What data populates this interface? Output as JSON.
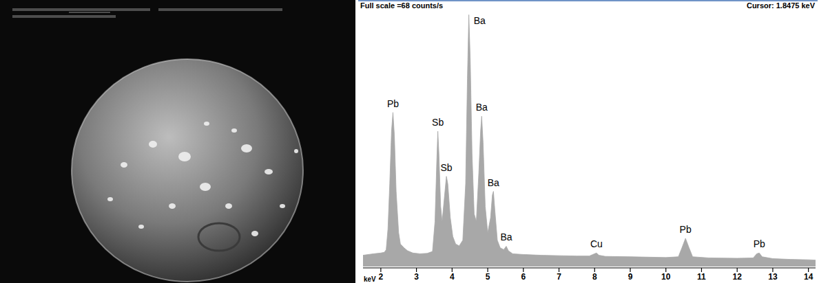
{
  "chart_data": {
    "type": "area",
    "title": "Full scale =68 counts/s",
    "subtitle": "Cursor: 1.8475 keV",
    "x_label": "keV",
    "color": "#a8a8a8",
    "grid": false,
    "tick_labels": "x",
    "xlim": [
      1.5,
      14.2
    ],
    "ylim": [
      0,
      68
    ],
    "xticks": [
      2,
      3,
      4,
      5,
      6,
      7,
      8,
      9,
      10,
      11,
      12,
      13,
      14
    ],
    "x": [
      1.5,
      1.8,
      2.0,
      2.1,
      2.15,
      2.2,
      2.25,
      2.3,
      2.34,
      2.38,
      2.43,
      2.5,
      2.55,
      2.65,
      2.75,
      2.9,
      3.1,
      3.3,
      3.45,
      3.52,
      3.57,
      3.6,
      3.63,
      3.68,
      3.72,
      3.78,
      3.84,
      3.88,
      3.95,
      4.02,
      4.1,
      4.2,
      4.3,
      4.38,
      4.43,
      4.47,
      4.51,
      4.56,
      4.62,
      4.68,
      4.75,
      4.8,
      4.83,
      4.87,
      4.93,
      5.0,
      5.08,
      5.13,
      5.16,
      5.2,
      5.27,
      5.35,
      5.45,
      5.52,
      5.58,
      5.7,
      6.0,
      6.5,
      7.0,
      7.5,
      7.85,
      7.95,
      8.05,
      8.12,
      8.3,
      9.0,
      9.5,
      10.0,
      10.35,
      10.45,
      10.55,
      10.65,
      10.75,
      11.2,
      12.0,
      12.45,
      12.55,
      12.62,
      12.7,
      13.0,
      13.5,
      14.0,
      14.2
    ],
    "values": [
      3.0,
      3.4,
      3.6,
      3.8,
      4.5,
      10,
      22,
      36,
      41,
      35,
      20,
      9,
      6,
      5,
      4.2,
      3.6,
      3.4,
      3.5,
      4,
      12,
      28,
      36,
      30,
      16,
      12,
      18,
      24,
      22,
      13,
      8,
      6,
      5.5,
      7,
      22,
      50,
      67,
      55,
      30,
      14,
      12,
      25,
      36,
      40,
      33,
      16,
      9,
      13,
      19,
      20,
      15,
      7,
      5,
      4.5,
      5.4,
      4.2,
      3.4,
      3.2,
      3.0,
      2.9,
      2.8,
      2.8,
      3.2,
      3.6,
      3.0,
      2.7,
      2.6,
      2.5,
      2.4,
      2.6,
      5,
      7.5,
      5,
      2.6,
      2.3,
      2.2,
      2.3,
      3.4,
      3.6,
      2.6,
      2.1,
      1.9,
      1.8,
      1.7
    ],
    "annotations": [
      {
        "text": "Pb",
        "x": 2.34,
        "y": 41
      },
      {
        "text": "Sb",
        "x": 3.6,
        "y": 36
      },
      {
        "text": "Sb",
        "x": 3.84,
        "y": 24
      },
      {
        "text": "Ba",
        "x": 4.47,
        "y": 67
      },
      {
        "text": "Ba",
        "x": 4.83,
        "y": 40
      },
      {
        "text": "Ba",
        "x": 5.16,
        "y": 20
      },
      {
        "text": "Ba",
        "x": 5.52,
        "y": 5.4
      },
      {
        "text": "Cu",
        "x": 8.05,
        "y": 3.6
      },
      {
        "text": "Pb",
        "x": 10.55,
        "y": 7.5
      },
      {
        "text": "Pb",
        "x": 12.62,
        "y": 3.6
      }
    ]
  }
}
